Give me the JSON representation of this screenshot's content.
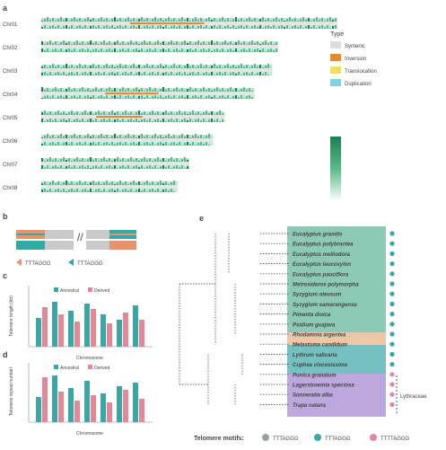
{
  "panels": {
    "a": {
      "label": "a",
      "chromosomes": [
        "Chr01",
        "Chr02",
        "Chr03",
        "Chr04",
        "Chr05",
        "Chr06",
        "Chr07",
        "Chr08"
      ]
    },
    "b": {
      "label": "b",
      "legend": [
        "TTTAGGG",
        "TTTAGGG"
      ]
    },
    "c": {
      "label": "c",
      "legend": [
        "Ancestral",
        "Derived"
      ],
      "xlabel": "Chromosome",
      "ylabel": "Telomere length (kb)"
    },
    "d": {
      "label": "d",
      "legend": [
        "Ancestral",
        "Derived"
      ],
      "xlabel": "Chromosome",
      "ylabel": "Telomere repeat number"
    },
    "e": {
      "label": "e",
      "species": [
        "Eucalyptus grandis",
        "Eucalyptus polybractea",
        "Eucalyptus melliodora",
        "Eucalyptus leucoxylon",
        "Eucalyptus pauciflora",
        "Metrosideros polymorpha",
        "Syzygium oleosum",
        "Syzygium samarangense",
        "Pimenta dioica",
        "Psidium guajava",
        "Rhodamnia argentea",
        "Melastoma candidum",
        "Lythrum salicaria",
        "Cuphea viscosissima",
        "Punica granatum",
        "Lagerstroemia speciosa",
        "Sonneratia alba",
        "Trapa natans"
      ],
      "group_label": "Lythraceae"
    },
    "legend_a": {
      "type_title": "Type",
      "types": [
        {
          "name": "Syntenic",
          "color": "#dddddd"
        },
        {
          "name": "Inversion",
          "color": "#e88a2c"
        },
        {
          "name": "Translocation",
          "color": "#f2df58"
        },
        {
          "name": "Duplication",
          "color": "#7fd3e3"
        }
      ],
      "colors": {
        "accent_green": "#2e9e7a",
        "accent_pink": "#e3879b",
        "accent_teal": "#3aa7a6"
      }
    },
    "motifs": {
      "title": "Telomere motifs:",
      "items": [
        "TTTAGGG",
        "TTTAGGG",
        "TTTTAGGG"
      ]
    }
  }
}
